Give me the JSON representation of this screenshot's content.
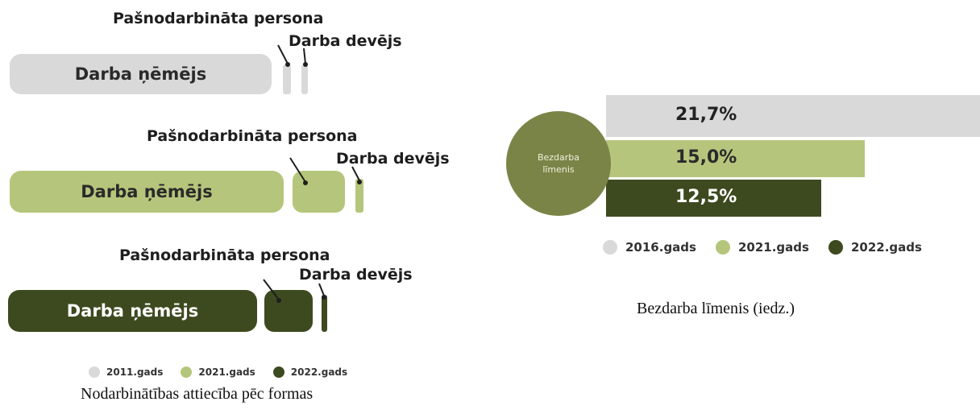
{
  "colors": {
    "c2011": "#d9d9d9",
    "c2016": "#d9d9d9",
    "c2021": "#b5c67c",
    "c2022": "#3d4a1f",
    "circle": "#7b8447",
    "leader": "#1e1e1e"
  },
  "left_chart": {
    "caption": "Nodarbinātības attiecība pēc formas",
    "rows": [
      {
        "year": "2011.gads",
        "employee_label": "Darba ņēmējs",
        "self_employed_label": "Pašnodarbināta persona",
        "employer_label": "Darba devējs"
      },
      {
        "year": "2021.gads",
        "employee_label": "Darba ņēmējs",
        "self_employed_label": "Pašnodarbināta persona",
        "employer_label": "Darba devējs"
      },
      {
        "year": "2022.gads",
        "employee_label": "Darba ņēmējs",
        "self_employed_label": "Pašnodarbināta persona",
        "employer_label": "Darba devējs"
      }
    ],
    "legend": [
      "2011.gads",
      "2021.gads",
      "2022.gads"
    ]
  },
  "right_chart": {
    "circle_label_line1": "Bezdarba",
    "circle_label_line2": "līmenis",
    "caption": "Bezdarba līmenis (iedz.)",
    "legend": [
      "2016.gads",
      "2021.gads",
      "2022.gads"
    ]
  },
  "chart_data": {
    "type": "bar",
    "categories": [
      "2016.gads",
      "2021.gads",
      "2022.gads"
    ],
    "values": [
      21.7,
      15.0,
      12.5
    ],
    "value_labels": [
      "21,7%",
      "15,0%",
      "12,5%"
    ],
    "unit": "%"
  }
}
